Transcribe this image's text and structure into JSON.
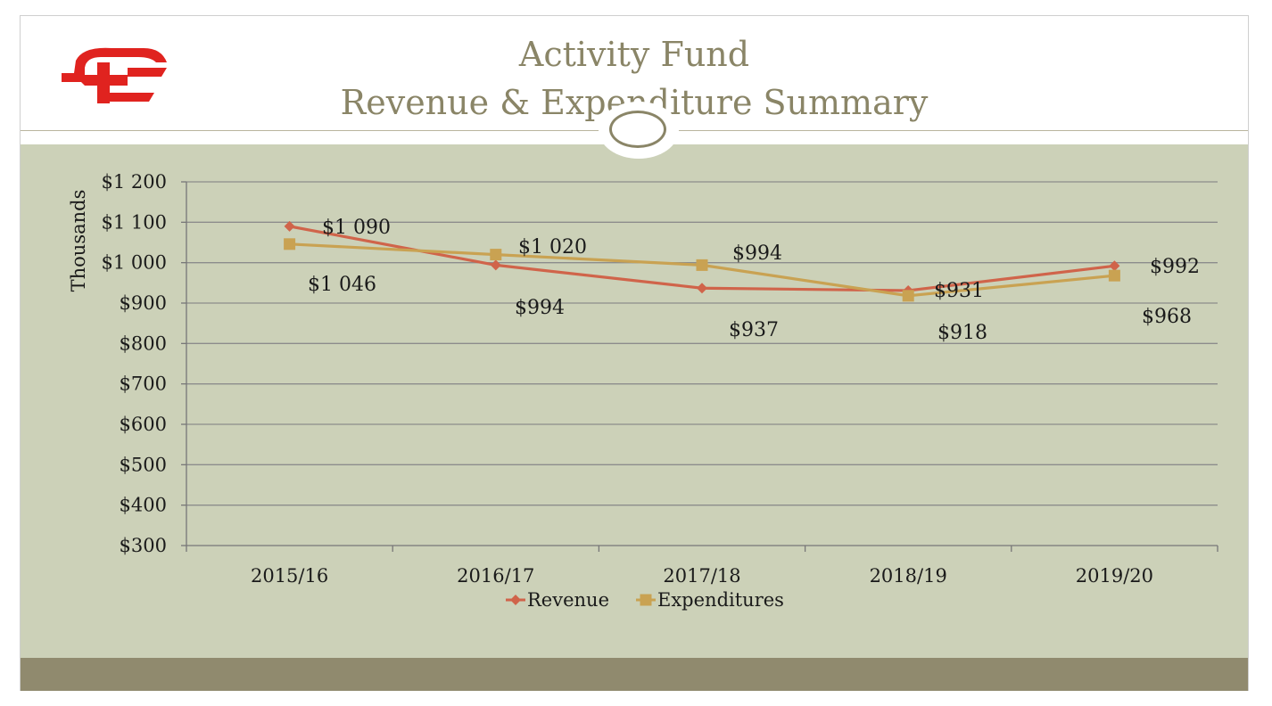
{
  "slide": {
    "title_line1": "Activity Fund",
    "title_line2": "Revenue & Expenditure Summary",
    "logo_icon": "cf-school-logo-icon",
    "ornament_icon": "oval-ring-icon"
  },
  "colors": {
    "title": "#8a8567",
    "chart_bg": "#ccd1b8",
    "band": "#908a6e",
    "revenue": "#d0644a",
    "expenditures": "#c9a252",
    "logo": "#e0231f"
  },
  "chart_data": {
    "type": "line",
    "title": "",
    "xlabel": "",
    "ylabel": "Thousands",
    "categories": [
      "2015/16",
      "2016/17",
      "2017/18",
      "2018/19",
      "2019/20"
    ],
    "ylim": [
      300,
      1200
    ],
    "yticks": [
      300,
      400,
      500,
      600,
      700,
      800,
      900,
      1000,
      1100,
      1200
    ],
    "ytick_labels": [
      "$300",
      "$400",
      "$500",
      "$600",
      "$700",
      "$800",
      "$900",
      "$1 000",
      "$1 100",
      "$1 200"
    ],
    "grid": true,
    "legend": "bottom-center",
    "series": [
      {
        "name": "Revenue",
        "marker": "diamond",
        "values": [
          1090,
          994,
          937,
          931,
          992
        ],
        "labels": [
          "$1 090",
          "$994",
          "$937",
          "$931",
          "$992"
        ]
      },
      {
        "name": "Expenditures",
        "marker": "square",
        "values": [
          1046,
          1020,
          994,
          918,
          968
        ],
        "labels": [
          "$1 046",
          "$1 020",
          "$994",
          "$918",
          "$968"
        ]
      }
    ]
  }
}
